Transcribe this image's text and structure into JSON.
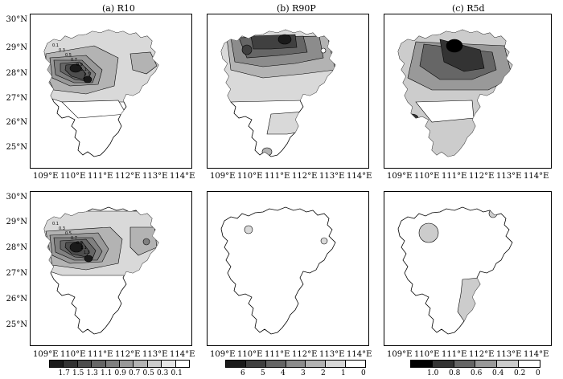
{
  "panels": {
    "a": {
      "title": "(a) R10"
    },
    "b": {
      "title": "(b) R90P"
    },
    "c": {
      "title": "(c) R5d"
    }
  },
  "lat_labels": [
    "30°N",
    "29°N",
    "28°N",
    "27°N",
    "26°N",
    "25°N"
  ],
  "lon_labels": [
    "109°E",
    "110°E",
    "111°E",
    "112°E",
    "113°E",
    "114°E"
  ],
  "colorbars": {
    "a": {
      "labels": [
        "1.7",
        "1.5",
        "1.3",
        "1.1",
        "0.9",
        "0.7",
        "0.5",
        "0.3",
        "0.1"
      ],
      "colors": [
        "#1a1a1a",
        "#333333",
        "#4d4d4d",
        "#666666",
        "#808080",
        "#999999",
        "#b3b3b3",
        "#cccccc",
        "#e6e6e6",
        "#ffffff"
      ]
    },
    "b": {
      "labels": [
        "6",
        "5",
        "4",
        "3",
        "2",
        "1",
        "0"
      ],
      "colors": [
        "#1a1a1a",
        "#404040",
        "#666666",
        "#8c8c8c",
        "#b3b3b3",
        "#d9d9d9",
        "#ffffff"
      ]
    },
    "c": {
      "labels": [
        "1.0",
        "0.8",
        "0.6",
        "0.4",
        "0.2",
        "0"
      ],
      "colors": [
        "#000000",
        "#333333",
        "#666666",
        "#999999",
        "#cccccc",
        "#ffffff"
      ]
    }
  },
  "contour_labels": {
    "a_top": [
      "0.1",
      "0.3",
      "0.5",
      "0.7",
      "0.9",
      "1.1",
      "1.3"
    ],
    "a_bottom": [
      "0.1",
      "0.3",
      "0.5",
      "0.7",
      "0.9",
      "1.1",
      "1.3"
    ]
  }
}
